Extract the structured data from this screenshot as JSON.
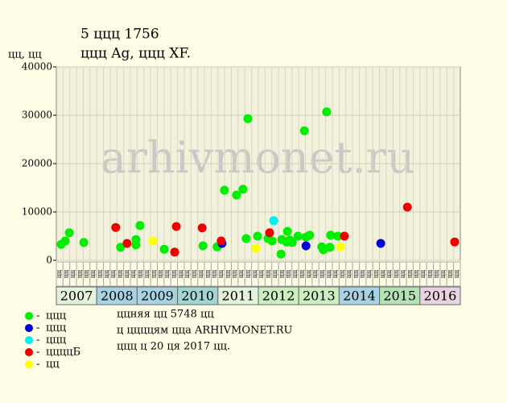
{
  "chart_data": {
    "type": "scatter",
    "title": "5 ццц 1756",
    "subtitle": "ццц Ag, ццц XF.",
    "ylabel": "цц, цц",
    "watermark": "arhivmonet.ru",
    "notes": [
      "ццняя цц 5748 цц",
      "ц ццццям цца ARHIVMONET.RU",
      "ццц ц 20 ця 2017 цц."
    ],
    "xlim": [
      2007,
      2017
    ],
    "ylim": [
      0,
      40000
    ],
    "yticks": [
      0,
      10000,
      20000,
      30000,
      40000
    ],
    "grid": true,
    "xticks": [
      2007,
      2008,
      2009,
      2010,
      2011,
      2012,
      2013,
      2014,
      2015,
      2016
    ],
    "year_colors": [
      "#e4f4dc",
      "#a9d3e3",
      "#a9d3e3",
      "#a3d6d3",
      "#e4f4dc",
      "#cdeec0",
      "#cdeec0",
      "#a9d3e3",
      "#b4e2b4",
      "#e8d4e0"
    ],
    "period_labels": [
      "цц",
      "цц",
      "цц",
      "цц",
      "цц",
      "цц"
    ],
    "series": [
      {
        "name": "ццц",
        "color": "#00ee00",
        "x": [
          2007.12,
          2007.22,
          2007.32,
          2007.68,
          2008.59,
          2008.97,
          2008.97,
          2009.07,
          2009.67,
          2010.63,
          2010.98,
          2011.16,
          2011.46,
          2011.62,
          2011.74,
          2011.7,
          2011.98,
          2012.24,
          2012.34,
          2012.56,
          2012.58,
          2012.72,
          2012.78,
          2012.7,
          2012.84,
          2012.98,
          2013.14,
          2013.18,
          2013.27,
          2013.57,
          2013.61,
          2013.69,
          2013.77,
          2013.79,
          2013.97
        ],
        "values": [
          3300,
          4000,
          5700,
          3700,
          2700,
          4300,
          3200,
          7200,
          2300,
          3000,
          2800,
          14500,
          13500,
          14700,
          29300,
          4500,
          5000,
          4500,
          4000,
          1300,
          4300,
          6000,
          4200,
          3800,
          3700,
          5000,
          26800,
          4800,
          5200,
          2800,
          2200,
          30700,
          2700,
          5200,
          5000
        ]
      },
      {
        "name": "ццц",
        "color": "#0000dd",
        "x": [
          2011.1,
          2013.18,
          2015.03
        ],
        "values": [
          3500,
          3000,
          3500
        ]
      },
      {
        "name": "ццц",
        "color": "#00eeee",
        "x": [
          2012.38
        ],
        "values": [
          8200
        ]
      },
      {
        "name": "ццццБ",
        "color": "#ee0000",
        "x": [
          2008.47,
          2008.75,
          2009.93,
          2009.97,
          2010.61,
          2011.08,
          2012.28,
          2014.13,
          2015.69,
          2016.86
        ],
        "values": [
          6800,
          3500,
          1700,
          7000,
          6700,
          4000,
          5700,
          5000,
          11000,
          3800
        ]
      },
      {
        "name": "цц",
        "color": "#ffff00",
        "x": [
          2009.39,
          2011.94,
          2014.03
        ],
        "values": [
          4000,
          2500,
          2800
        ]
      }
    ]
  }
}
